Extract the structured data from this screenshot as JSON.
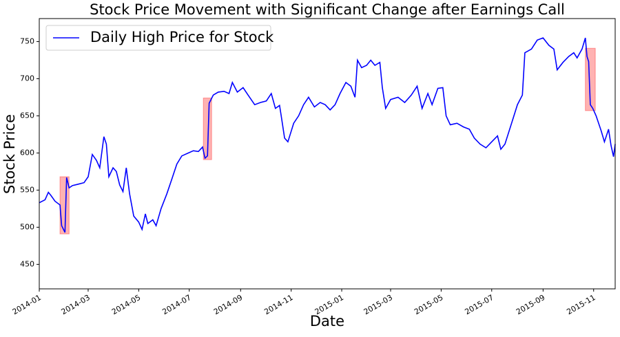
{
  "chart_data": {
    "type": "line",
    "title": "Stock Price Movement with Significant Change after Earnings Call",
    "x_label": "Date",
    "y_label": "Stock Price",
    "x": [
      "2014-01-01",
      "2014-01-08",
      "2014-01-12",
      "2014-01-15",
      "2014-01-20",
      "2014-01-26",
      "2014-01-28",
      "2014-02-01",
      "2014-02-03",
      "2014-02-06",
      "2014-02-10",
      "2014-02-17",
      "2014-02-24",
      "2014-03-01",
      "2014-03-06",
      "2014-03-11",
      "2014-03-15",
      "2014-03-20",
      "2014-03-23",
      "2014-03-26",
      "2014-03-31",
      "2014-04-04",
      "2014-04-08",
      "2014-04-12",
      "2014-04-16",
      "2014-04-20",
      "2014-04-25",
      "2014-05-01",
      "2014-05-05",
      "2014-05-09",
      "2014-05-12",
      "2014-05-18",
      "2014-05-22",
      "2014-05-28",
      "2014-06-04",
      "2014-06-10",
      "2014-06-16",
      "2014-06-22",
      "2014-06-30",
      "2014-07-06",
      "2014-07-12",
      "2014-07-17",
      "2014-07-20",
      "2014-07-23",
      "2014-07-25",
      "2014-07-30",
      "2014-08-05",
      "2014-08-12",
      "2014-08-18",
      "2014-08-22",
      "2014-08-28",
      "2014-09-04",
      "2014-09-10",
      "2014-09-18",
      "2014-09-25",
      "2014-10-02",
      "2014-10-08",
      "2014-10-13",
      "2014-10-18",
      "2014-10-20",
      "2014-10-24",
      "2014-10-28",
      "2014-11-04",
      "2014-11-10",
      "2014-11-16",
      "2014-11-22",
      "2014-11-29",
      "2014-12-06",
      "2014-12-12",
      "2014-12-18",
      "2014-12-24",
      "2014-12-30",
      "2015-01-06",
      "2015-01-12",
      "2015-01-17",
      "2015-01-20",
      "2015-01-25",
      "2015-01-31",
      "2015-02-05",
      "2015-02-10",
      "2015-02-16",
      "2015-02-19",
      "2015-02-23",
      "2015-03-01",
      "2015-03-10",
      "2015-03-18",
      "2015-03-26",
      "2015-04-02",
      "2015-04-08",
      "2015-04-15",
      "2015-04-20",
      "2015-04-27",
      "2015-05-03",
      "2015-05-07",
      "2015-05-12",
      "2015-05-20",
      "2015-05-28",
      "2015-06-04",
      "2015-06-10",
      "2015-06-17",
      "2015-06-24",
      "2015-07-01",
      "2015-07-08",
      "2015-07-12",
      "2015-07-17",
      "2015-07-25",
      "2015-08-01",
      "2015-08-07",
      "2015-08-10",
      "2015-08-18",
      "2015-08-25",
      "2015-09-01",
      "2015-09-08",
      "2015-09-14",
      "2015-09-18",
      "2015-09-25",
      "2015-10-02",
      "2015-10-08",
      "2015-10-12",
      "2015-10-18",
      "2015-10-22",
      "2015-10-24",
      "2015-10-26",
      "2015-10-28",
      "2015-10-31",
      "2015-11-04",
      "2015-11-10",
      "2015-11-14",
      "2015-11-19",
      "2015-11-22",
      "2015-11-25",
      "2015-11-27"
    ],
    "series": [
      {
        "name": "Daily High Price for Stock",
        "color": "#0000ff",
        "values": [
          533,
          537,
          547,
          543,
          535,
          530,
          502,
          493,
          567,
          553,
          556,
          558,
          560,
          568,
          598,
          590,
          580,
          622,
          612,
          568,
          580,
          575,
          557,
          548,
          580,
          545,
          515,
          507,
          497,
          518,
          505,
          510,
          502,
          525,
          545,
          565,
          585,
          596,
          600,
          603,
          602,
          608,
          593,
          596,
          667,
          678,
          682,
          683,
          680,
          695,
          682,
          688,
          678,
          665,
          668,
          670,
          680,
          660,
          664,
          650,
          620,
          615,
          640,
          650,
          665,
          675,
          662,
          668,
          665,
          658,
          665,
          680,
          695,
          690,
          675,
          725,
          715,
          718,
          725,
          718,
          722,
          688,
          660,
          672,
          675,
          668,
          678,
          690,
          660,
          680,
          665,
          687,
          688,
          650,
          638,
          640,
          635,
          632,
          620,
          612,
          607,
          615,
          623,
          605,
          612,
          640,
          665,
          678,
          735,
          740,
          752,
          755,
          745,
          740,
          712,
          722,
          730,
          735,
          728,
          740,
          755,
          730,
          723,
          665,
          660,
          650,
          630,
          615,
          632,
          610,
          595,
          612
        ]
      }
    ],
    "highlights": [
      {
        "x0": "2014-01-26",
        "x1": "2014-02-06",
        "y0": 491,
        "y1": 568
      },
      {
        "x0": "2014-07-18",
        "x1": "2014-07-28",
        "y0": 591,
        "y1": 674
      },
      {
        "x0": "2015-10-22",
        "x1": "2015-11-03",
        "y0": 657,
        "y1": 741
      }
    ],
    "highlight_color": "#ff0000",
    "xlim": [
      "2014-01-01",
      "2015-11-27"
    ],
    "xticks": [
      {
        "value": "2014-01-01",
        "label": "2014-01"
      },
      {
        "value": "2014-03-01",
        "label": "2014-03"
      },
      {
        "value": "2014-05-01",
        "label": "2014-05"
      },
      {
        "value": "2014-07-01",
        "label": "2014-07"
      },
      {
        "value": "2014-09-01",
        "label": "2014-09"
      },
      {
        "value": "2014-11-01",
        "label": "2014-11"
      },
      {
        "value": "2015-01-01",
        "label": "2015-01"
      },
      {
        "value": "2015-03-01",
        "label": "2015-03"
      },
      {
        "value": "2015-05-01",
        "label": "2015-05"
      },
      {
        "value": "2015-07-01",
        "label": "2015-07"
      },
      {
        "value": "2015-09-01",
        "label": "2015-09"
      },
      {
        "value": "2015-11-01",
        "label": "2015-11"
      }
    ],
    "ylim": [
      417,
      781
    ],
    "yticks": [
      450,
      500,
      550,
      600,
      650,
      700,
      750
    ],
    "grid": false,
    "legend": "upper left"
  }
}
